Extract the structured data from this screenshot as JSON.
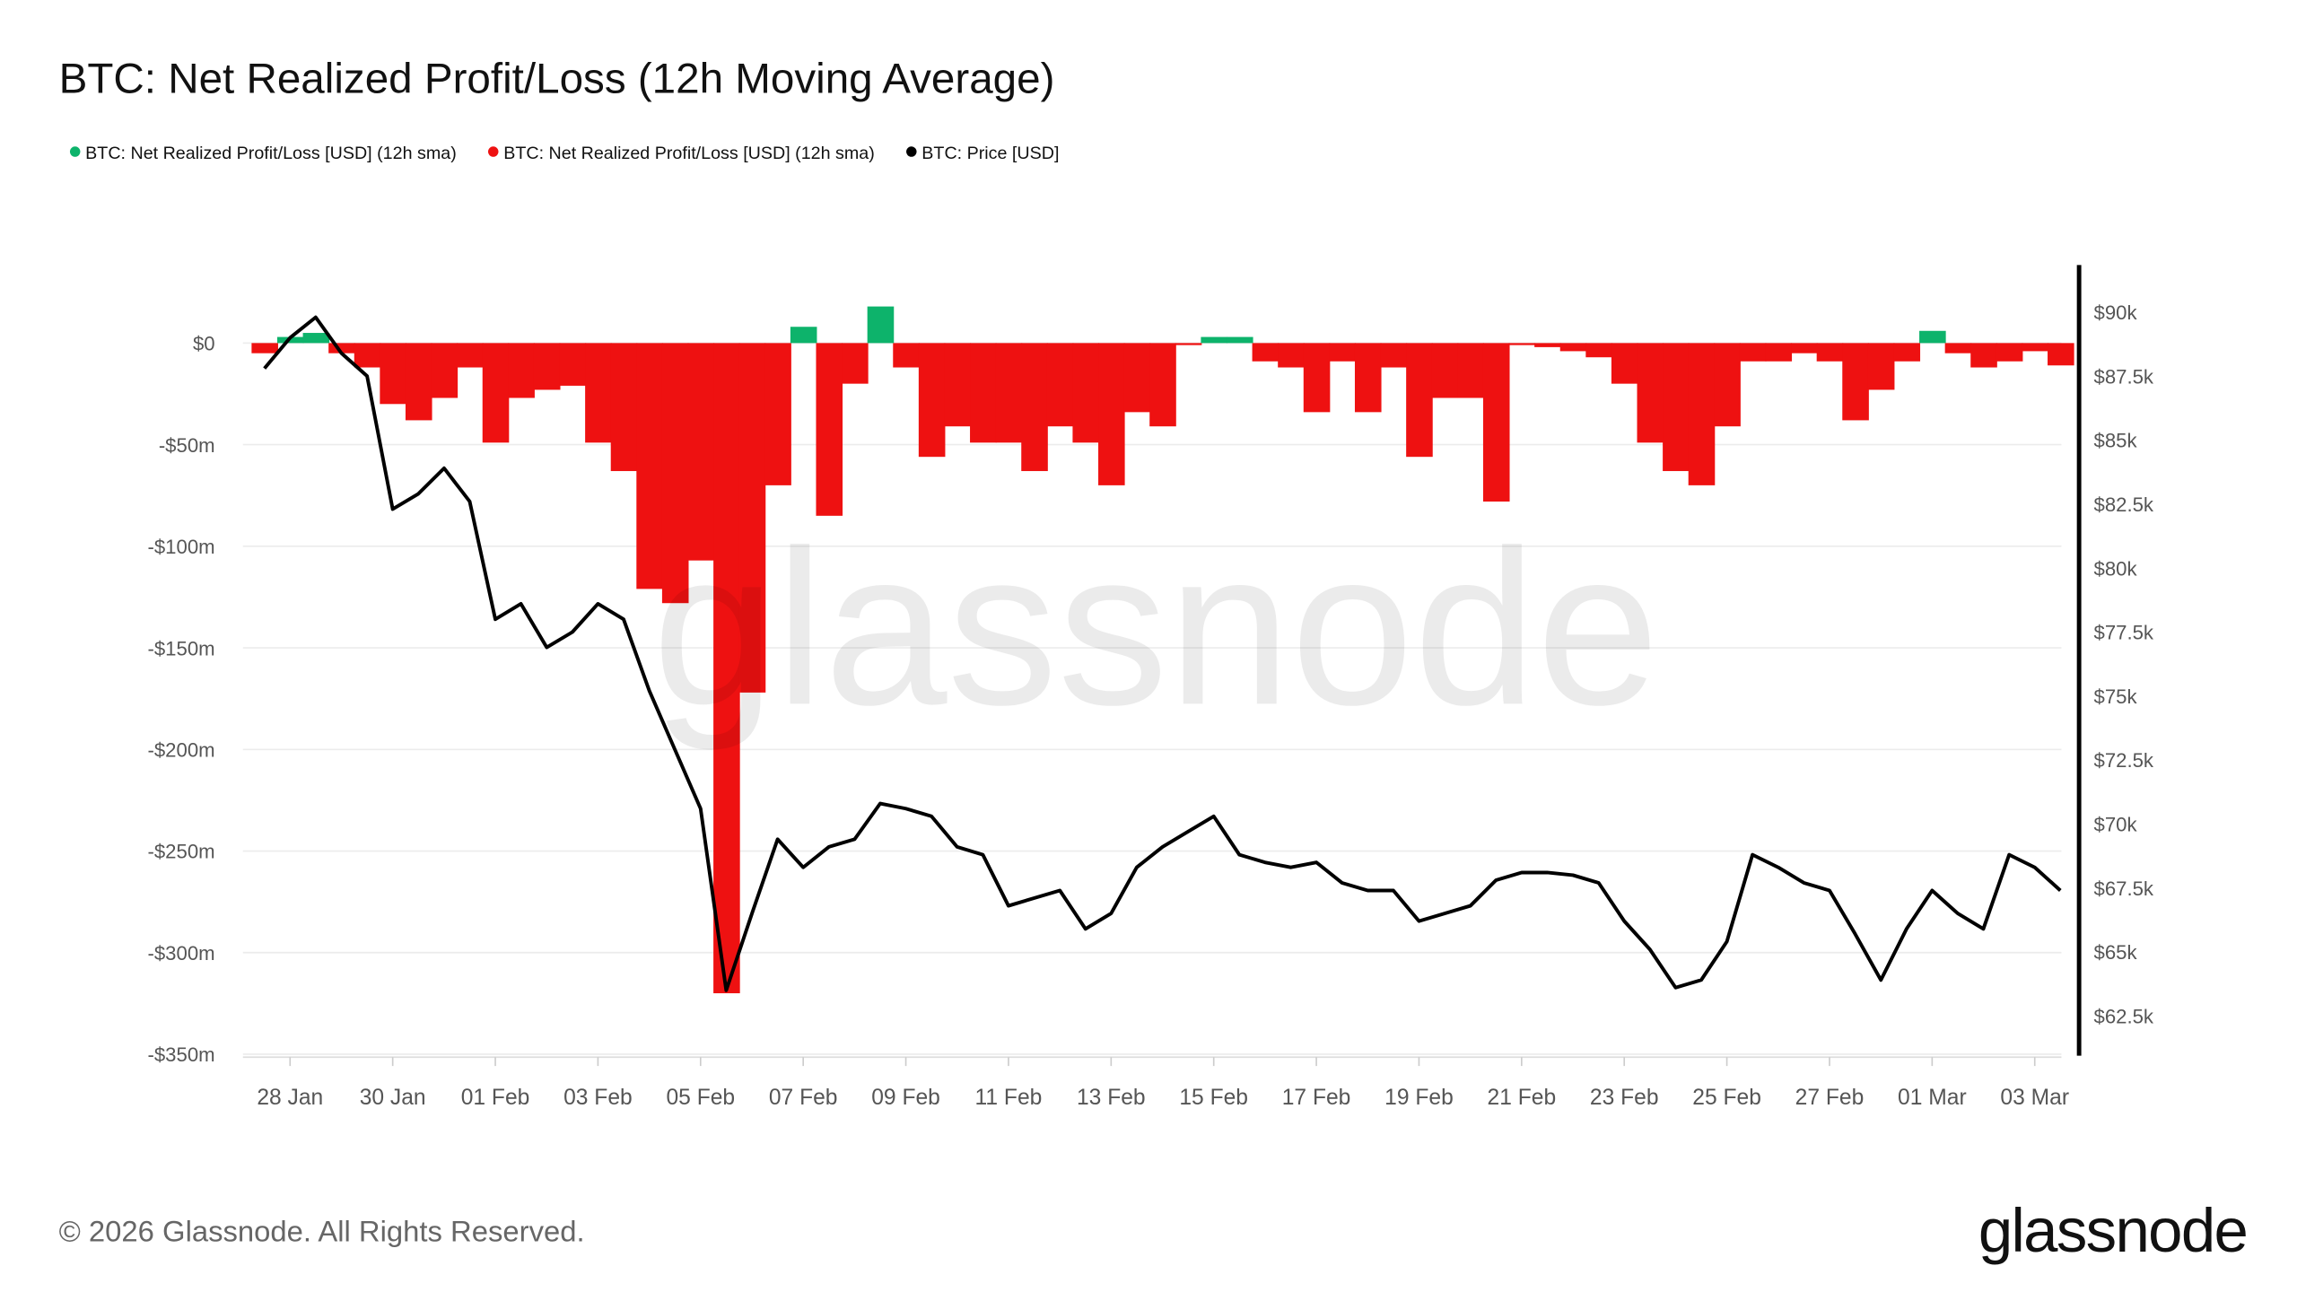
{
  "header": {
    "title": "BTC: Net Realized Profit/Loss (12h Moving Average)"
  },
  "legend": [
    {
      "label": "BTC: Net Realized Profit/Loss [USD] (12h sma)",
      "color": "#0db36b"
    },
    {
      "label": "BTC: Net Realized Profit/Loss [USD] (12h sma)",
      "color": "#ee1111"
    },
    {
      "label": "BTC: Price [USD]",
      "color": "#000000"
    }
  ],
  "footer": {
    "copyright": "© 2026 Glassnode. All Rights Reserved.",
    "logo": "glassnode",
    "watermark": "glassnode"
  },
  "chart_data": {
    "type": "area+line",
    "title": "BTC: Net Realized Profit/Loss (12h Moving Average)",
    "x_start": "2026-01-27T12:00",
    "x_interval_hours": 12,
    "x_tick_labels": [
      "28 Jan",
      "30 Jan",
      "01 Feb",
      "03 Feb",
      "05 Feb",
      "07 Feb",
      "09 Feb",
      "11 Feb",
      "13 Feb",
      "15 Feb",
      "17 Feb",
      "19 Feb",
      "21 Feb",
      "23 Feb",
      "25 Feb",
      "27 Feb",
      "01 Mar",
      "03 Mar"
    ],
    "left_axis": {
      "ticks": [
        0,
        -50,
        -100,
        -150,
        -200,
        -250,
        -300,
        -350
      ],
      "tick_labels": [
        "$0",
        "-$50m",
        "-$100m",
        "-$150m",
        "-$200m",
        "-$250m",
        "-$300m",
        "-$350m"
      ],
      "range": [
        -350,
        0
      ],
      "unit": "USD millions"
    },
    "right_axis": {
      "ticks": [
        90,
        87.5,
        85,
        82.5,
        80,
        77.5,
        75,
        72.5,
        70,
        67.5,
        65,
        62.5
      ],
      "tick_labels": [
        "$90k",
        "$87.5k",
        "$85k",
        "$82.5k",
        "$80k",
        "$77.5k",
        "$75k",
        "$72.5k",
        "$70k",
        "$67.5k",
        "$65k",
        "$62.5k"
      ],
      "unit": "USD thousands"
    },
    "grid": true,
    "legend_position": "top-left",
    "series": [
      {
        "name": "BTC: Net Realized Profit/Loss [USD] (12h sma)",
        "axis": "left",
        "positive_color": "#0db36b",
        "negative_color": "#ee1111",
        "values": [
          -5,
          3,
          5,
          -5,
          -12,
          -30,
          -38,
          -27,
          -12,
          -49,
          -27,
          -23,
          -21,
          -49,
          -63,
          -121,
          -128,
          -107,
          -320,
          -172,
          -70,
          8,
          -85,
          -20,
          18,
          -12,
          -56,
          -41,
          -49,
          -49,
          -63,
          -41,
          -49,
          -70,
          -34,
          -41,
          -1,
          3,
          3,
          -9,
          -12,
          -34,
          -9,
          -34,
          -12,
          -56,
          -27,
          -27,
          -78,
          -1,
          -2,
          -4,
          -7,
          -20,
          -49,
          -63,
          -70,
          -41,
          -9,
          -9,
          -5,
          -9,
          -38,
          -23,
          -9,
          6,
          -5,
          -12,
          -9,
          -4,
          -11
        ]
      },
      {
        "name": "BTC: Price [USD]",
        "axis": "right",
        "color": "#000000",
        "values": [
          87.8,
          89.0,
          89.8,
          88.4,
          87.5,
          82.3,
          82.9,
          83.9,
          82.6,
          78.0,
          78.6,
          76.9,
          77.5,
          78.6,
          78.0,
          75.2,
          72.9,
          70.6,
          63.5,
          66.5,
          69.4,
          68.3,
          69.1,
          69.4,
          70.8,
          70.6,
          70.3,
          69.1,
          68.8,
          66.8,
          67.1,
          67.4,
          65.9,
          66.5,
          68.3,
          69.1,
          69.7,
          70.3,
          68.8,
          68.5,
          68.3,
          68.5,
          67.7,
          67.4,
          67.4,
          66.2,
          66.5,
          66.8,
          67.8,
          68.1,
          68.1,
          68.0,
          67.7,
          66.2,
          65.1,
          63.6,
          63.9,
          65.4,
          68.8,
          68.3,
          67.7,
          67.4,
          65.7,
          63.9,
          65.9,
          67.4,
          66.5,
          65.9,
          68.8,
          68.3,
          67.4
        ]
      }
    ]
  }
}
